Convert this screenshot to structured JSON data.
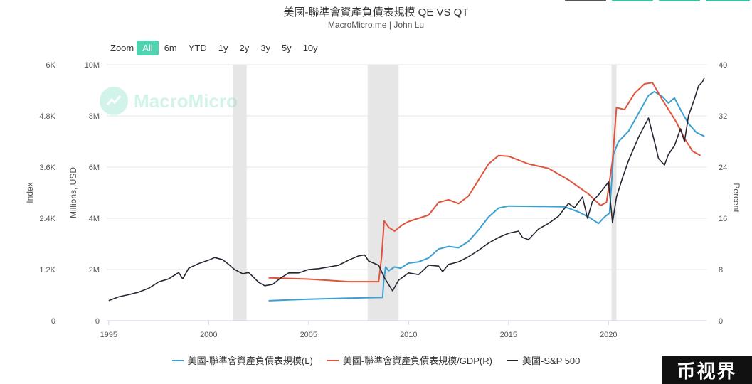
{
  "header": {
    "title": "美國-聯準會資產負債表規模 QE VS QT",
    "subtitle": "MacroMicro.me | John Lu"
  },
  "zoom": {
    "label": "Zoom",
    "buttons": [
      "All",
      "6m",
      "YTD",
      "1y",
      "2y",
      "3y",
      "5y",
      "10y"
    ],
    "active": "All"
  },
  "watermark": {
    "text": "MacroMicro"
  },
  "brand": {
    "text": "币视界"
  },
  "colors": {
    "balance_sheet": "#3b9fd0",
    "gdp_ratio": "#e0533c",
    "sp500": "#262633",
    "recession": "#e6e6e6",
    "grid": "#e6e6e6",
    "accent": "#4fd3b0"
  },
  "chart_data": {
    "type": "line",
    "title": "美國-聯準會資產負債表規模 QE VS QT",
    "subtitle": "MacroMicro.me | John Lu",
    "x_ticks": [
      "1995",
      "2000",
      "2005",
      "2010",
      "2015",
      "2020"
    ],
    "xlim": [
      1994.9,
      2024.9
    ],
    "axes": {
      "index": {
        "label": "Index",
        "ticks": [
          "0",
          "1.2K",
          "2.4K",
          "3.6K",
          "4.8K",
          "6K"
        ],
        "range": [
          0,
          6000
        ]
      },
      "millions": {
        "label": "Millions, USD",
        "ticks": [
          "0",
          "2M",
          "4M",
          "6M",
          "8M",
          "10M"
        ],
        "range": [
          0,
          10000000
        ]
      },
      "percent": {
        "label": "Percent",
        "ticks": [
          "0",
          "8",
          "16",
          "24",
          "32",
          "40"
        ],
        "range": [
          0,
          40
        ]
      }
    },
    "recession_bands": [
      [
        2001.2,
        2001.9
      ],
      [
        2007.95,
        2009.5
      ],
      [
        2020.15,
        2020.4
      ]
    ],
    "series": [
      {
        "name": "美國-聯準會資產負債表規模(L)",
        "axis": "millions",
        "color": "#3b9fd0",
        "points": [
          [
            2003.0,
            780000
          ],
          [
            2004.0,
            810000
          ],
          [
            2005.0,
            840000
          ],
          [
            2006.0,
            860000
          ],
          [
            2007.0,
            880000
          ],
          [
            2008.0,
            900000
          ],
          [
            2008.7,
            910000
          ],
          [
            2008.75,
            1500000
          ],
          [
            2008.85,
            2100000
          ],
          [
            2009.0,
            1950000
          ],
          [
            2009.3,
            2100000
          ],
          [
            2009.6,
            2050000
          ],
          [
            2010.0,
            2250000
          ],
          [
            2010.5,
            2300000
          ],
          [
            2011.0,
            2450000
          ],
          [
            2011.5,
            2800000
          ],
          [
            2012.0,
            2900000
          ],
          [
            2012.5,
            2850000
          ],
          [
            2013.0,
            3100000
          ],
          [
            2013.5,
            3550000
          ],
          [
            2014.0,
            4050000
          ],
          [
            2014.5,
            4400000
          ],
          [
            2015.0,
            4480000
          ],
          [
            2016.0,
            4470000
          ],
          [
            2017.0,
            4460000
          ],
          [
            2017.8,
            4450000
          ],
          [
            2018.5,
            4250000
          ],
          [
            2019.0,
            4050000
          ],
          [
            2019.5,
            3800000
          ],
          [
            2019.8,
            4050000
          ],
          [
            2020.05,
            4200000
          ],
          [
            2020.25,
            6500000
          ],
          [
            2020.5,
            7000000
          ],
          [
            2021.0,
            7400000
          ],
          [
            2021.5,
            8100000
          ],
          [
            2022.0,
            8800000
          ],
          [
            2022.3,
            8950000
          ],
          [
            2022.7,
            8750000
          ],
          [
            2023.0,
            8500000
          ],
          [
            2023.3,
            8700000
          ],
          [
            2023.7,
            8100000
          ],
          [
            2024.0,
            7700000
          ],
          [
            2024.4,
            7350000
          ],
          [
            2024.8,
            7200000
          ]
        ]
      },
      {
        "name": "美國-聯準會資產負債表規模/GDP(R)",
        "axis": "percent",
        "color": "#e0533c",
        "points": [
          [
            2003.0,
            6.7
          ],
          [
            2004.0,
            6.6
          ],
          [
            2005.0,
            6.5
          ],
          [
            2006.0,
            6.3
          ],
          [
            2007.0,
            6.1
          ],
          [
            2008.5,
            6.1
          ],
          [
            2008.65,
            10.0
          ],
          [
            2008.78,
            15.6
          ],
          [
            2009.0,
            14.6
          ],
          [
            2009.3,
            14.0
          ],
          [
            2009.7,
            15.0
          ],
          [
            2010.0,
            15.5
          ],
          [
            2010.5,
            16.0
          ],
          [
            2011.0,
            16.5
          ],
          [
            2011.5,
            18.5
          ],
          [
            2012.0,
            18.9
          ],
          [
            2012.5,
            18.3
          ],
          [
            2013.0,
            19.5
          ],
          [
            2013.5,
            22.0
          ],
          [
            2014.0,
            24.5
          ],
          [
            2014.5,
            25.8
          ],
          [
            2015.0,
            25.7
          ],
          [
            2016.0,
            24.5
          ],
          [
            2017.0,
            23.8
          ],
          [
            2018.0,
            22.0
          ],
          [
            2019.0,
            19.8
          ],
          [
            2019.6,
            18.0
          ],
          [
            2019.9,
            18.5
          ],
          [
            2020.2,
            25.0
          ],
          [
            2020.4,
            33.3
          ],
          [
            2020.8,
            33.0
          ],
          [
            2021.3,
            35.5
          ],
          [
            2021.8,
            37.0
          ],
          [
            2022.2,
            37.2
          ],
          [
            2022.6,
            35.0
          ],
          [
            2023.0,
            33.0
          ],
          [
            2023.4,
            31.0
          ],
          [
            2023.8,
            28.5
          ],
          [
            2024.2,
            26.5
          ],
          [
            2024.6,
            25.8
          ]
        ]
      },
      {
        "name": "美國-S&P 500",
        "axis": "index",
        "color": "#262633",
        "points": [
          [
            1995.0,
            470
          ],
          [
            1995.5,
            560
          ],
          [
            1996.0,
            610
          ],
          [
            1996.5,
            670
          ],
          [
            1997.0,
            760
          ],
          [
            1997.5,
            910
          ],
          [
            1998.0,
            980
          ],
          [
            1998.5,
            1130
          ],
          [
            1998.7,
            980
          ],
          [
            1999.0,
            1230
          ],
          [
            1999.5,
            1340
          ],
          [
            2000.0,
            1420
          ],
          [
            2000.3,
            1480
          ],
          [
            2000.7,
            1430
          ],
          [
            2001.0,
            1320
          ],
          [
            2001.3,
            1200
          ],
          [
            2001.7,
            1100
          ],
          [
            2002.0,
            1130
          ],
          [
            2002.5,
            900
          ],
          [
            2002.8,
            820
          ],
          [
            2003.2,
            850
          ],
          [
            2003.6,
            1000
          ],
          [
            2004.0,
            1120
          ],
          [
            2004.5,
            1120
          ],
          [
            2005.0,
            1200
          ],
          [
            2005.5,
            1220
          ],
          [
            2006.0,
            1260
          ],
          [
            2006.5,
            1300
          ],
          [
            2007.0,
            1420
          ],
          [
            2007.5,
            1520
          ],
          [
            2007.8,
            1540
          ],
          [
            2008.0,
            1400
          ],
          [
            2008.5,
            1300
          ],
          [
            2008.8,
            1000
          ],
          [
            2009.0,
            850
          ],
          [
            2009.2,
            700
          ],
          [
            2009.5,
            950
          ],
          [
            2010.0,
            1120
          ],
          [
            2010.5,
            1080
          ],
          [
            2011.0,
            1300
          ],
          [
            2011.5,
            1280
          ],
          [
            2011.7,
            1150
          ],
          [
            2012.0,
            1320
          ],
          [
            2012.5,
            1380
          ],
          [
            2013.0,
            1500
          ],
          [
            2013.5,
            1650
          ],
          [
            2014.0,
            1820
          ],
          [
            2014.5,
            1950
          ],
          [
            2015.0,
            2050
          ],
          [
            2015.5,
            2100
          ],
          [
            2015.7,
            1950
          ],
          [
            2016.0,
            1900
          ],
          [
            2016.5,
            2150
          ],
          [
            2017.0,
            2280
          ],
          [
            2017.5,
            2450
          ],
          [
            2018.0,
            2750
          ],
          [
            2018.3,
            2650
          ],
          [
            2018.7,
            2900
          ],
          [
            2018.95,
            2400
          ],
          [
            2019.2,
            2800
          ],
          [
            2019.5,
            2950
          ],
          [
            2020.0,
            3250
          ],
          [
            2020.2,
            2300
          ],
          [
            2020.4,
            2900
          ],
          [
            2020.7,
            3350
          ],
          [
            2021.0,
            3750
          ],
          [
            2021.5,
            4300
          ],
          [
            2022.0,
            4750
          ],
          [
            2022.3,
            4200
          ],
          [
            2022.5,
            3800
          ],
          [
            2022.8,
            3650
          ],
          [
            2023.0,
            3900
          ],
          [
            2023.3,
            4100
          ],
          [
            2023.6,
            4500
          ],
          [
            2023.8,
            4200
          ],
          [
            2024.0,
            4800
          ],
          [
            2024.3,
            5200
          ],
          [
            2024.5,
            5500
          ],
          [
            2024.7,
            5600
          ],
          [
            2024.8,
            5700
          ]
        ]
      }
    ],
    "legend": [
      {
        "label": "美國-聯準會資產負債表規模(L)",
        "color": "#3b9fd0"
      },
      {
        "label": "美國-聯準會資產負債表規模/GDP(R)",
        "color": "#e0533c"
      },
      {
        "label": "美國-S&P 500",
        "color": "#262633"
      }
    ],
    "legend_position": "bottom",
    "grid": true
  }
}
